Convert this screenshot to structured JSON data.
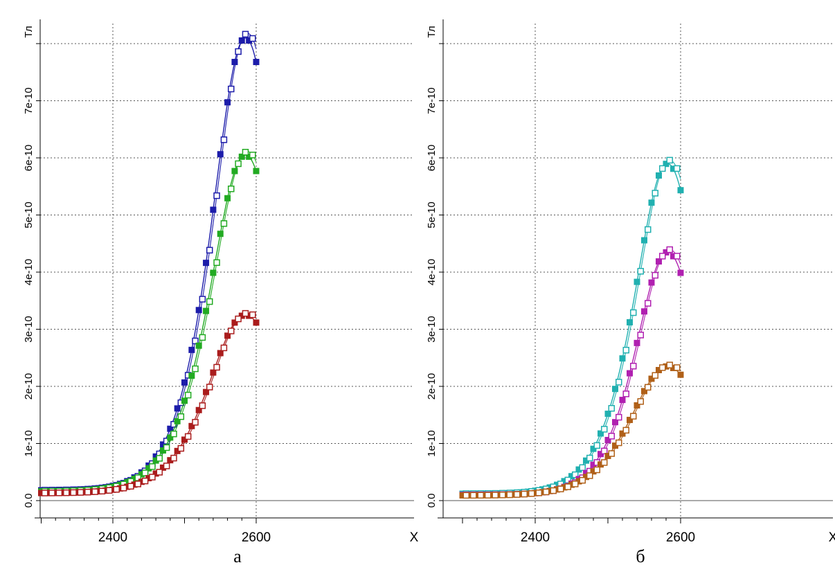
{
  "chart_data": [
    {
      "type": "line",
      "caption": "а",
      "xlabel": "X",
      "ylabel": "Тл",
      "xlim": [
        2290,
        2605
      ],
      "ylim": [
        -3.5e-11,
        8.3e-10
      ],
      "x_ticks": [
        2400,
        2600
      ],
      "x_tick_labels": [
        "2400",
        "2600"
      ],
      "y_ticks": [
        0,
        1e-10,
        2e-10,
        3e-10,
        4e-10,
        5e-10,
        6e-10,
        7e-10,
        8e-10
      ],
      "y_tick_labels": [
        "0.0",
        "1e-10",
        "2e-10",
        "3e-10",
        "4e-10",
        "5e-10",
        "6e-10",
        "7e-10",
        ""
      ],
      "grid": true,
      "series": [
        {
          "color": "#1c1caa",
          "peak": 8.1e-10,
          "center": 2585,
          "width": 70,
          "base": 1.8e-11
        },
        {
          "color": "#22aa22",
          "peak": 6.05e-10,
          "center": 2585,
          "width": 74,
          "base": 1.6e-11
        },
        {
          "color": "#aa1c1c",
          "peak": 3.25e-10,
          "center": 2585,
          "width": 78,
          "base": 1.3e-11
        }
      ]
    },
    {
      "type": "line",
      "caption": "б",
      "xlabel": "X",
      "ylabel": "Тл",
      "xlim": [
        2290,
        2605
      ],
      "ylim": [
        -3.5e-11,
        8.3e-10
      ],
      "x_ticks": [
        2400,
        2600
      ],
      "x_tick_labels": [
        "2400",
        "2600"
      ],
      "y_ticks": [
        0,
        1e-10,
        2e-10,
        3e-10,
        4e-10,
        5e-10,
        6e-10,
        7e-10,
        8e-10
      ],
      "y_tick_labels": [
        "0.0",
        "1e-10",
        "2e-10",
        "3e-10",
        "4e-10",
        "5e-10",
        "6e-10",
        "7e-10",
        ""
      ],
      "grid": true,
      "series": [
        {
          "color": "#20b0b0",
          "peak": 5.9e-10,
          "center": 2582,
          "width": 68,
          "base": 1.2e-11
        },
        {
          "color": "#b020b0",
          "peak": 4.35e-10,
          "center": 2582,
          "width": 66,
          "base": 1e-11
        },
        {
          "color": "#b06018",
          "peak": 2.35e-10,
          "center": 2582,
          "width": 76,
          "base": 9e-12
        }
      ]
    }
  ]
}
